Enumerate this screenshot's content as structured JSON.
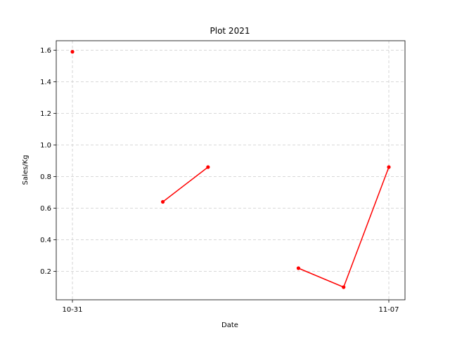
{
  "chart_data": {
    "type": "line",
    "title": "Plot 2021",
    "xlabel": "Date",
    "ylabel": "Sales/Kg",
    "x": [
      "10-31",
      "11-01",
      "11-02",
      "11-03",
      "11-04",
      "11-05",
      "11-06",
      "11-07"
    ],
    "x_tick_labels": [
      "10-31",
      "11-07"
    ],
    "series": [
      {
        "values": [
          1.59,
          null,
          0.64,
          0.86,
          null,
          0.22,
          0.1,
          0.86
        ]
      }
    ],
    "ylim": [
      0.02,
      1.66
    ],
    "y_ticks": [
      0.2,
      0.4,
      0.6,
      0.8,
      1.0,
      1.2,
      1.4,
      1.6
    ],
    "grid": true,
    "color": "#ff0000"
  }
}
